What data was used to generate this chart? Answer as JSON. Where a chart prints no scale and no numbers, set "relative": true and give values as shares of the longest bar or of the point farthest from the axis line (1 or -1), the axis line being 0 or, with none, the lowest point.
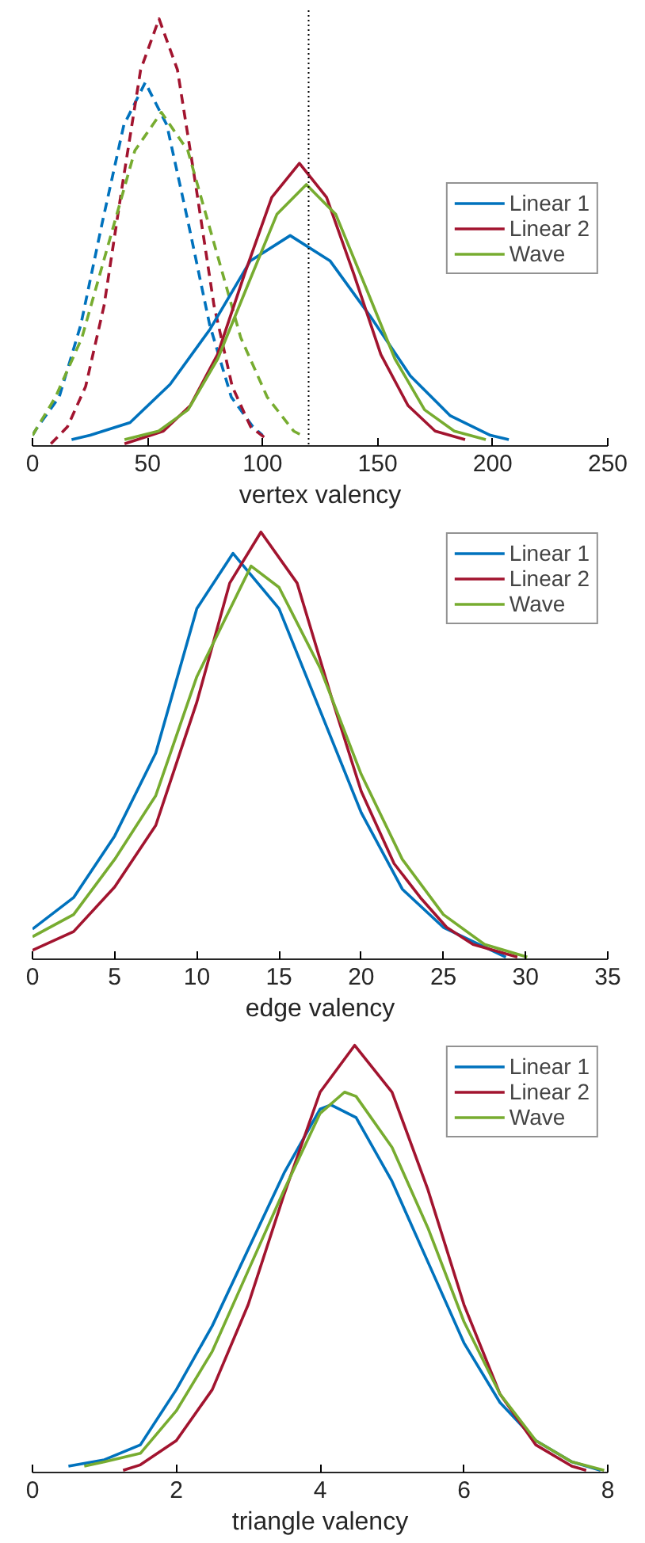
{
  "chart_data": [
    {
      "type": "line",
      "relative": true,
      "xlabel": "vertex valency",
      "xlim": [
        0,
        250
      ],
      "xticks": [
        0,
        50,
        100,
        150,
        200,
        250
      ],
      "tick_labels": "x",
      "legend": "right",
      "grid": false,
      "ref_lines": [
        {
          "axis": "x",
          "value": 120,
          "color": "#000000",
          "line_style": "dotted"
        }
      ],
      "series": [
        {
          "color": "#0072bd",
          "line_style": "dashed",
          "x": [
            0,
            2.25,
            11.6,
            21,
            30.3,
            39.7,
            49,
            58.4,
            67.7,
            77,
            86.4,
            95.8,
            100
          ],
          "values": [
            0.02,
            0.04,
            0.11,
            0.28,
            0.52,
            0.75,
            0.85,
            0.75,
            0.52,
            0.28,
            0.11,
            0.04,
            0.02
          ]
        },
        {
          "color": "#a2142f",
          "line_style": "dashed",
          "x": [
            8,
            15.2,
            23.1,
            31.1,
            39.1,
            47,
            55,
            63,
            70.9,
            78.9,
            86.8,
            94.8,
            102
          ],
          "values": [
            0.0,
            0.04,
            0.135,
            0.325,
            0.61,
            0.88,
            1,
            0.88,
            0.61,
            0.325,
            0.135,
            0.04,
            0.01
          ]
        },
        {
          "color": "#77ac30",
          "line_style": "dashed",
          "x": [
            0,
            10,
            21.5,
            33,
            44.5,
            56,
            67.5,
            79,
            90.5,
            102,
            113.5,
            117
          ],
          "values": [
            0.02,
            0.11,
            0.25,
            0.47,
            0.69,
            0.78,
            0.69,
            0.47,
            0.25,
            0.11,
            0.03,
            0.02
          ]
        },
        {
          "name": "Linear 1",
          "color": "#0072bd",
          "line_style": "solid",
          "x": [
            17,
            25,
            42.4,
            59.8,
            77.2,
            94.6,
            112,
            129.4,
            146.8,
            164.2,
            181.6,
            199,
            207
          ],
          "values": [
            0.01,
            0.02,
            0.05,
            0.14,
            0.27,
            0.43,
            0.49,
            0.43,
            0.3,
            0.16,
            0.066,
            0.02,
            0.01
          ]
        },
        {
          "name": "Linear 2",
          "color": "#a2142f",
          "line_style": "solid",
          "x": [
            40,
            56.9,
            68.6,
            80.4,
            92.2,
            104,
            116,
            127.8,
            139.6,
            151.4,
            163.2,
            175,
            188
          ],
          "values": [
            0,
            0.03,
            0.09,
            0.21,
            0.4,
            0.58,
            0.66,
            0.58,
            0.4,
            0.21,
            0.09,
            0.03,
            0.01
          ]
        },
        {
          "name": "Wave",
          "color": "#77ac30",
          "line_style": "solid",
          "x": [
            40,
            54.8,
            67.6,
            80.5,
            93.3,
            106.2,
            119,
            131.8,
            144.7,
            157.5,
            170.4,
            183.3,
            197
          ],
          "values": [
            0.01,
            0.03,
            0.08,
            0.2,
            0.37,
            0.54,
            0.61,
            0.54,
            0.37,
            0.2,
            0.08,
            0.03,
            0.01
          ]
        }
      ]
    },
    {
      "type": "line",
      "relative": true,
      "xlabel": "edge valency",
      "xlim": [
        0,
        35
      ],
      "xticks": [
        0,
        5,
        10,
        15,
        20,
        25,
        30,
        35
      ],
      "tick_labels": "x",
      "legend": "top right",
      "grid": false,
      "series": [
        {
          "name": "Linear 1",
          "color": "#0072bd",
          "x": [
            0,
            2.5,
            5,
            7.5,
            10,
            12.2,
            15,
            17.5,
            20,
            22.5,
            25,
            28.8
          ],
          "values": [
            0.066,
            0.14,
            0.285,
            0.48,
            0.82,
            0.95,
            0.82,
            0.58,
            0.34,
            0.16,
            0.07,
            0
          ]
        },
        {
          "name": "Linear 2",
          "color": "#a2142f",
          "x": [
            0,
            2.5,
            5,
            7.5,
            10,
            12,
            13.9,
            16.1,
            18.2,
            20,
            22,
            23.6,
            25.2,
            26.8,
            29.5
          ],
          "values": [
            0.016,
            0.06,
            0.165,
            0.31,
            0.6,
            0.88,
            1,
            0.88,
            0.61,
            0.39,
            0.22,
            0.14,
            0.07,
            0.03,
            0
          ]
        },
        {
          "name": "Wave",
          "color": "#77ac30",
          "x": [
            0,
            2.5,
            5,
            7.5,
            10,
            13.3,
            15,
            17.5,
            20,
            22.5,
            25,
            27.5,
            30.1
          ],
          "values": [
            0.048,
            0.1,
            0.23,
            0.38,
            0.66,
            0.92,
            0.87,
            0.68,
            0.43,
            0.23,
            0.1,
            0.03,
            0
          ]
        }
      ]
    },
    {
      "type": "line",
      "relative": true,
      "xlabel": "triangle valency",
      "xlim": [
        0,
        8
      ],
      "xticks": [
        0,
        2,
        4,
        6,
        8
      ],
      "tick_labels": "x",
      "legend": "top right",
      "grid": false,
      "series": [
        {
          "name": "Linear 1",
          "color": "#0072bd",
          "x": [
            0.5,
            1,
            1.5,
            2,
            2.5,
            3,
            3.5,
            4,
            4.15,
            4.5,
            5,
            5.5,
            6,
            6.5,
            7,
            7.5,
            7.9
          ],
          "values": [
            0.01,
            0.025,
            0.06,
            0.19,
            0.34,
            0.52,
            0.7,
            0.85,
            0.86,
            0.83,
            0.68,
            0.49,
            0.3,
            0.16,
            0.07,
            0.02,
            0
          ]
        },
        {
          "name": "Linear 2",
          "color": "#a2142f",
          "x": [
            1.26,
            1.5,
            2,
            2.5,
            3,
            3.5,
            4,
            4.48,
            5,
            5.5,
            6,
            6.5,
            7,
            7.5,
            7.7
          ],
          "values": [
            0,
            0.013,
            0.07,
            0.19,
            0.39,
            0.65,
            0.89,
            1,
            0.89,
            0.66,
            0.39,
            0.18,
            0.06,
            0.01,
            0
          ]
        },
        {
          "name": "Wave",
          "color": "#77ac30",
          "x": [
            0.72,
            1,
            1.5,
            2,
            2.5,
            3,
            3.5,
            4,
            4.34,
            4.5,
            5,
            5.5,
            6,
            6.5,
            7,
            7.5,
            7.95
          ],
          "values": [
            0.01,
            0.02,
            0.04,
            0.14,
            0.28,
            0.47,
            0.66,
            0.84,
            0.89,
            0.88,
            0.76,
            0.57,
            0.35,
            0.18,
            0.07,
            0.02,
            0
          ]
        }
      ]
    }
  ]
}
